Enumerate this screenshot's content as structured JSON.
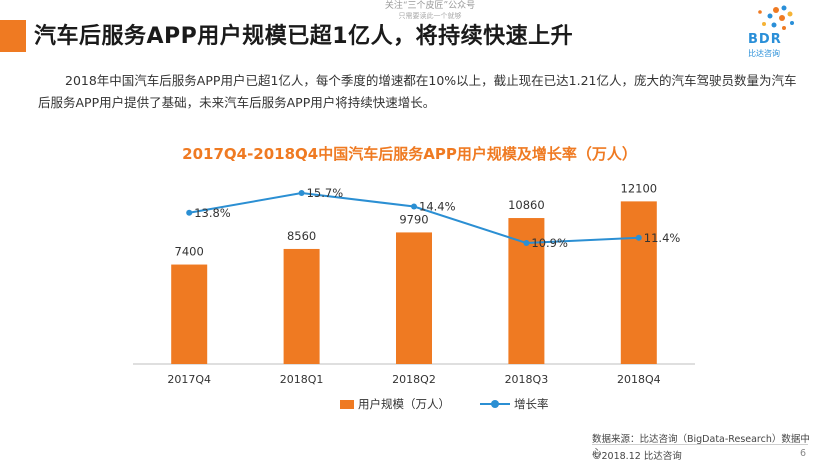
{
  "header": {
    "title": "汽车后服务APP用户规模已超1亿人，将持续快速上升",
    "watermark_line1": "关注“三个皮匠”公众号",
    "watermark_line2": "只需要读此一个就够"
  },
  "logo": {
    "text": "BDR",
    "subtext": "比达咨询"
  },
  "description": "2018年中国汽车后服务APP用户已超1亿人，每个季度的增速都在10%以上，截止现在已达1.21亿人，庞大的汽车驾驶员数量为汽车后服务APP用户提供了基础，未来汽车后服务APP用户将持续快速增长。",
  "chart_data": {
    "type": "bar",
    "title": "2017Q4-2018Q4中国汽车后服务APP用户规模及增长率（万人）",
    "categories": [
      "2017Q4",
      "2018Q1",
      "2018Q2",
      "2018Q3",
      "2018Q4"
    ],
    "series": [
      {
        "name": "用户规模（万人）",
        "type": "bar",
        "values": [
          7400,
          8560,
          9790,
          10860,
          12100
        ],
        "labels": [
          "7400",
          "8560",
          "9790",
          "10860",
          "12100"
        ],
        "color": "#ef7a22"
      },
      {
        "name": "增长率",
        "type": "line",
        "values": [
          13.8,
          15.7,
          14.4,
          10.9,
          11.4
        ],
        "labels": [
          "13.8%",
          "15.7%",
          "14.4%",
          "10.9%",
          "11.4%"
        ],
        "color": "#2b8fd3"
      }
    ],
    "grid": false,
    "legend": "bottom-center"
  },
  "legend": {
    "bar_label": "用户规模（万人）",
    "line_label": "增长率"
  },
  "footer": {
    "source": "数据来源：比达咨询（BigData-Research）数据中心",
    "copyright": "©2018.12 比达咨询",
    "page": "6"
  },
  "colors": {
    "accent": "#ef7a22",
    "line": "#2b8fd3"
  }
}
